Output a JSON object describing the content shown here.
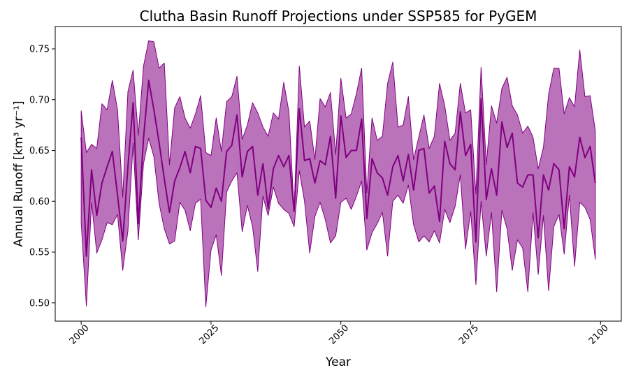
{
  "chart_data": {
    "type": "line",
    "title": "Clutha Basin Runoff Projections under SSP585 for PyGEM",
    "xlabel": "Year",
    "ylabel": "Annual Runoff [km³ yr⁻¹]",
    "xlim": [
      1995,
      2104
    ],
    "ylim": [
      0.482,
      0.772
    ],
    "xticks": [
      2000,
      2025,
      2050,
      2075,
      2100
    ],
    "yticks": [
      0.5,
      0.55,
      0.6,
      0.65,
      0.7,
      0.75
    ],
    "grid": false,
    "line_color": "#800080",
    "band_color": "#ba72ba",
    "x": [
      2000,
      2001,
      2002,
      2003,
      2004,
      2005,
      2006,
      2007,
      2008,
      2009,
      2010,
      2011,
      2012,
      2013,
      2014,
      2015,
      2016,
      2017,
      2018,
      2019,
      2020,
      2021,
      2022,
      2023,
      2024,
      2025,
      2026,
      2027,
      2028,
      2029,
      2030,
      2031,
      2032,
      2033,
      2034,
      2035,
      2036,
      2037,
      2038,
      2039,
      2040,
      2041,
      2042,
      2043,
      2044,
      2045,
      2046,
      2047,
      2048,
      2049,
      2050,
      2051,
      2052,
      2053,
      2054,
      2055,
      2056,
      2057,
      2058,
      2059,
      2060,
      2061,
      2062,
      2063,
      2064,
      2065,
      2066,
      2067,
      2068,
      2069,
      2070,
      2071,
      2072,
      2073,
      2074,
      2075,
      2076,
      2077,
      2078,
      2079,
      2080,
      2081,
      2082,
      2083,
      2084,
      2085,
      2086,
      2087,
      2088,
      2089,
      2090,
      2091,
      2092,
      2093,
      2094,
      2095,
      2096,
      2097,
      2098,
      2099
    ],
    "series": [
      {
        "values": [
          0.663,
          0.546,
          0.631,
          0.586,
          0.618,
          0.634,
          0.649,
          0.606,
          0.561,
          0.634,
          0.697,
          0.578,
          0.662,
          0.719,
          0.69,
          0.658,
          0.622,
          0.589,
          0.62,
          0.633,
          0.649,
          0.628,
          0.654,
          0.652,
          0.601,
          0.594,
          0.613,
          0.6,
          0.649,
          0.655,
          0.685,
          0.624,
          0.649,
          0.654,
          0.606,
          0.637,
          0.593,
          0.632,
          0.645,
          0.634,
          0.645,
          0.59,
          0.691,
          0.64,
          0.642,
          0.618,
          0.64,
          0.636,
          0.664,
          0.603,
          0.684,
          0.643,
          0.65,
          0.65,
          0.681,
          0.583,
          0.642,
          0.628,
          0.623,
          0.606,
          0.634,
          0.645,
          0.62,
          0.646,
          0.611,
          0.65,
          0.652,
          0.608,
          0.615,
          0.58,
          0.659,
          0.637,
          0.631,
          0.688,
          0.645,
          0.656,
          0.56,
          0.701,
          0.602,
          0.632,
          0.606,
          0.678,
          0.653,
          0.667,
          0.618,
          0.614,
          0.626,
          0.626,
          0.564,
          0.626,
          0.611,
          0.637,
          0.631,
          0.573,
          0.634,
          0.624,
          0.663,
          0.643,
          0.654,
          0.618
        ]
      },
      {
        "values": [
          0.689,
          0.648,
          0.656,
          0.652,
          0.696,
          0.69,
          0.719,
          0.69,
          0.604,
          0.708,
          0.729,
          0.665,
          0.733,
          0.758,
          0.757,
          0.731,
          0.736,
          0.636,
          0.692,
          0.703,
          0.682,
          0.672,
          0.686,
          0.704,
          0.648,
          0.645,
          0.682,
          0.649,
          0.698,
          0.703,
          0.723,
          0.661,
          0.675,
          0.697,
          0.687,
          0.673,
          0.664,
          0.687,
          0.681,
          0.717,
          0.688,
          0.59,
          0.733,
          0.673,
          0.679,
          0.641,
          0.701,
          0.693,
          0.707,
          0.646,
          0.721,
          0.682,
          0.686,
          0.706,
          0.731,
          0.608,
          0.682,
          0.66,
          0.664,
          0.716,
          0.737,
          0.673,
          0.675,
          0.703,
          0.641,
          0.663,
          0.685,
          0.652,
          0.664,
          0.716,
          0.694,
          0.66,
          0.667,
          0.716,
          0.687,
          0.69,
          0.607,
          0.732,
          0.636,
          0.694,
          0.677,
          0.711,
          0.722,
          0.694,
          0.685,
          0.667,
          0.674,
          0.663,
          0.632,
          0.653,
          0.705,
          0.731,
          0.731,
          0.686,
          0.702,
          0.693,
          0.749,
          0.703,
          0.704,
          0.669
        ]
      },
      {
        "values": [
          0.579,
          0.497,
          0.599,
          0.549,
          0.562,
          0.579,
          0.577,
          0.587,
          0.532,
          0.571,
          0.657,
          0.562,
          0.637,
          0.662,
          0.644,
          0.598,
          0.573,
          0.558,
          0.561,
          0.599,
          0.591,
          0.571,
          0.598,
          0.602,
          0.496,
          0.552,
          0.567,
          0.527,
          0.609,
          0.62,
          0.628,
          0.57,
          0.596,
          0.575,
          0.531,
          0.605,
          0.586,
          0.614,
          0.598,
          0.592,
          0.588,
          0.575,
          0.63,
          0.6,
          0.549,
          0.585,
          0.599,
          0.582,
          0.559,
          0.566,
          0.599,
          0.603,
          0.592,
          0.605,
          0.62,
          0.552,
          0.569,
          0.578,
          0.589,
          0.546,
          0.6,
          0.606,
          0.598,
          0.616,
          0.577,
          0.56,
          0.566,
          0.56,
          0.571,
          0.559,
          0.592,
          0.579,
          0.595,
          0.626,
          0.553,
          0.59,
          0.518,
          0.6,
          0.546,
          0.589,
          0.511,
          0.591,
          0.573,
          0.532,
          0.562,
          0.554,
          0.511,
          0.589,
          0.528,
          0.586,
          0.512,
          0.575,
          0.587,
          0.548,
          0.606,
          0.536,
          0.599,
          0.594,
          0.582,
          0.543
        ]
      }
    ]
  }
}
